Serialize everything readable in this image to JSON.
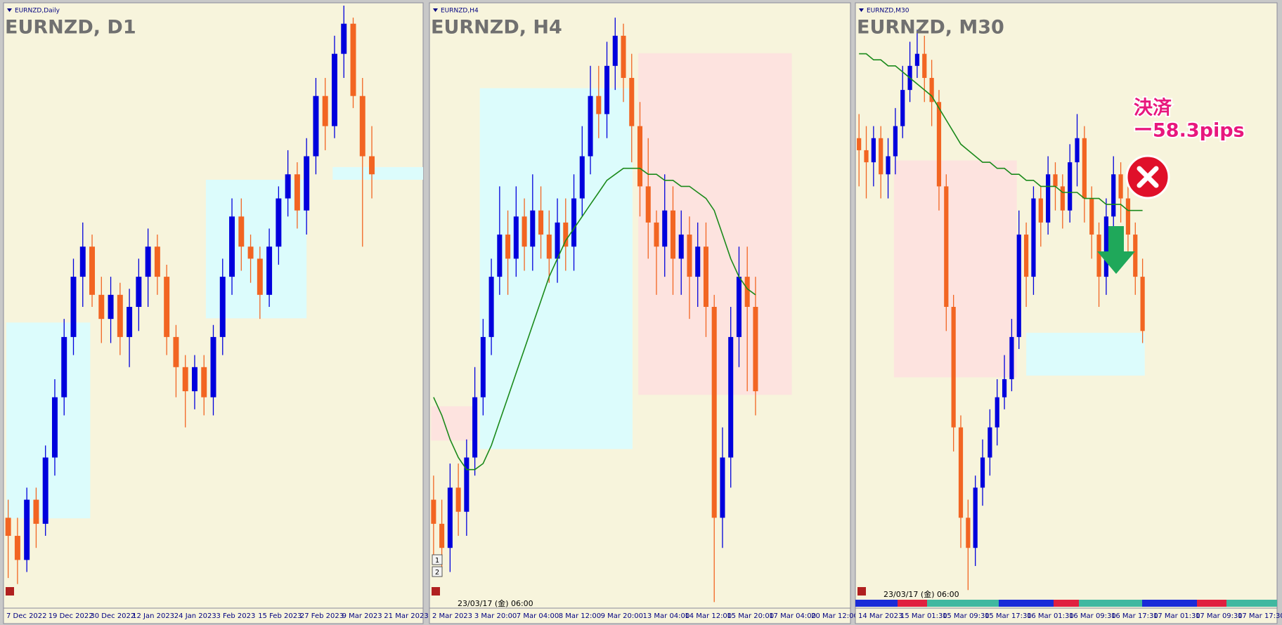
{
  "chart_data": [
    {
      "type": "candlestick",
      "label": "EURNZD,Daily",
      "title": "EURNZD, D1",
      "ylim": [
        0,
        100
      ],
      "up_color": "#0000dd",
      "down_color": "#f26522",
      "ma_color": "#1b8a1b",
      "open": [
        15,
        12,
        8,
        18,
        14,
        25,
        35,
        45,
        55,
        60,
        52,
        48,
        52,
        45,
        50,
        55,
        60,
        55,
        45,
        40,
        36,
        40,
        35,
        45,
        55,
        65,
        60,
        58,
        52,
        60,
        68,
        72,
        66,
        75,
        85,
        80,
        92,
        97,
        85,
        75,
        null,
        null,
        null,
        null,
        null
      ],
      "high": [
        18,
        15,
        20,
        20,
        27,
        38,
        48,
        58,
        64,
        62,
        55,
        55,
        54,
        53,
        58,
        63,
        62,
        57,
        47,
        42,
        42,
        42,
        47,
        58,
        68,
        68,
        62,
        60,
        63,
        70,
        76,
        74,
        78,
        88,
        88,
        95,
        100,
        98,
        88,
        80,
        null,
        null,
        null,
        null,
        null
      ],
      "low": [
        5,
        4,
        6,
        10,
        12,
        22,
        32,
        42,
        50,
        50,
        44,
        44,
        42,
        40,
        46,
        50,
        52,
        42,
        35,
        30,
        33,
        32,
        32,
        42,
        52,
        56,
        54,
        48,
        50,
        57,
        65,
        63,
        62,
        72,
        76,
        78,
        88,
        83,
        60,
        68,
        null,
        null,
        null,
        null,
        null
      ],
      "close": [
        12,
        8,
        18,
        14,
        25,
        35,
        45,
        55,
        60,
        52,
        48,
        52,
        45,
        50,
        55,
        60,
        55,
        45,
        40,
        36,
        40,
        35,
        45,
        55,
        65,
        60,
        58,
        52,
        60,
        68,
        72,
        66,
        75,
        85,
        80,
        92,
        97,
        85,
        75,
        72,
        null,
        null,
        null,
        null,
        null
      ],
      "zones": [
        {
          "x": [
            0.3,
            9.3
          ],
          "y": [
            14.9,
            47.4
          ],
          "color": "#dcfcfc"
        },
        {
          "x": [
            21.7,
            32.5
          ],
          "y": [
            48.1,
            71.1
          ],
          "color": "#dcfcfc"
        },
        {
          "x": [
            35.3,
            45
          ],
          "y": [
            71.1,
            73.2
          ],
          "color": "#dcfcfc"
        }
      ],
      "x_labels": [
        "7 Dec 2022",
        "19 Dec 2022",
        "30 Dec 2022",
        "12 Jan 2023",
        "24 Jan 2023",
        "3 Feb 2023",
        "15 Feb 2023",
        "27 Feb 2023",
        "9 Mar 2023",
        "21 Mar 2023"
      ]
    },
    {
      "type": "candlestick",
      "label": "EURNZD,H4",
      "title": "EURNZD, H4",
      "ylim": [
        0,
        100
      ],
      "up_color": "#0000dd",
      "down_color": "#f26522",
      "ma_color": "#1b8a1b",
      "open": [
        18,
        14,
        10,
        20,
        16,
        25,
        35,
        45,
        55,
        62,
        58,
        65,
        60,
        66,
        62,
        58,
        64,
        60,
        68,
        75,
        85,
        82,
        90,
        95,
        88,
        80,
        70,
        64,
        60,
        66,
        58,
        62,
        55,
        60,
        50,
        15,
        25,
        45,
        55,
        50,
        null,
        null,
        null,
        null,
        null,
        null,
        null,
        null,
        null,
        null,
        null
      ],
      "high": [
        22,
        18,
        24,
        24,
        28,
        40,
        48,
        58,
        70,
        66,
        70,
        68,
        72,
        70,
        66,
        68,
        68,
        72,
        80,
        90,
        90,
        94,
        98,
        97,
        92,
        84,
        78,
        66,
        72,
        70,
        66,
        65,
        64,
        64,
        52,
        30,
        50,
        60,
        60,
        55,
        null,
        null,
        null,
        null,
        null,
        null,
        null,
        null,
        null,
        null,
        null
      ],
      "low": [
        8,
        6,
        6,
        12,
        12,
        22,
        32,
        42,
        52,
        52,
        55,
        56,
        56,
        58,
        54,
        54,
        56,
        56,
        65,
        72,
        78,
        78,
        86,
        84,
        74,
        65,
        58,
        52,
        55,
        52,
        52,
        48,
        50,
        45,
        1,
        10,
        20,
        40,
        36,
        32,
        null,
        null,
        null,
        null,
        null,
        null,
        null,
        null,
        null,
        null,
        null
      ],
      "close": [
        14,
        10,
        20,
        16,
        25,
        35,
        45,
        55,
        62,
        58,
        65,
        60,
        66,
        62,
        58,
        64,
        60,
        68,
        75,
        85,
        82,
        90,
        95,
        88,
        80,
        70,
        64,
        60,
        66,
        58,
        62,
        55,
        60,
        50,
        15,
        25,
        45,
        55,
        50,
        36,
        null,
        null,
        null,
        null,
        null,
        null,
        null,
        null,
        null,
        null,
        null
      ],
      "ma": [
        35,
        32,
        28,
        25,
        23,
        23,
        24,
        27,
        31,
        35,
        39,
        43,
        47,
        51,
        55,
        58,
        61,
        63,
        65,
        67,
        69,
        71,
        72,
        73,
        73,
        73,
        72,
        72,
        71,
        71,
        70,
        70,
        69,
        68,
        66,
        62,
        58,
        55,
        53,
        52,
        null,
        null,
        null,
        null,
        null,
        null,
        null,
        null,
        null,
        null,
        null
      ],
      "zones": [
        {
          "x": [
            6.1,
            24.6
          ],
          "y": [
            26.4,
            86.3
          ],
          "color": "#dcfcfc"
        },
        {
          "x": [
            25.3,
            43.9
          ],
          "y": [
            35.4,
            92.1
          ],
          "color": "#fde3df"
        },
        {
          "x": [
            0.2,
            5.4
          ],
          "y": [
            27.8,
            33.5
          ],
          "color": "#fde3df"
        }
      ],
      "x_labels": [
        "2 Mar 2023",
        "3 Mar 20:00",
        "7 Mar 04:00",
        "8 Mar 12:00",
        "9 Mar 20:00",
        "13 Mar 04:00",
        "14 Mar 12:00",
        "15 Mar 20:00",
        "17 Mar 04:00",
        "20 Mar 12:00"
      ],
      "timestamp": "23/03/17 (金) 06:00",
      "buttons": [
        "1",
        "2"
      ]
    },
    {
      "type": "candlestick",
      "label": "EURNZD,M30",
      "title": "EURNZD, M30",
      "ylim": [
        0,
        100
      ],
      "up_color": "#0000dd",
      "down_color": "#f26522",
      "ma_color": "#1b8a1b",
      "open": [
        78,
        76,
        74,
        78,
        72,
        75,
        80,
        86,
        90,
        92,
        88,
        84,
        70,
        50,
        30,
        15,
        10,
        20,
        25,
        30,
        35,
        38,
        45,
        62,
        55,
        68,
        64,
        72,
        70,
        66,
        74,
        78,
        68,
        62,
        55,
        65,
        72,
        68,
        62,
        55,
        null,
        null,
        null,
        null,
        null,
        null,
        null,
        null,
        null,
        null,
        null,
        null,
        null,
        null,
        null,
        null,
        null,
        null
      ],
      "high": [
        82,
        80,
        80,
        80,
        78,
        83,
        90,
        94,
        96,
        95,
        91,
        86,
        72,
        52,
        32,
        18,
        22,
        28,
        33,
        38,
        42,
        48,
        66,
        64,
        70,
        70,
        75,
        74,
        72,
        77,
        82,
        80,
        70,
        64,
        68,
        75,
        74,
        70,
        64,
        58,
        null,
        null,
        null,
        null,
        null,
        null,
        null,
        null,
        null,
        null,
        null,
        null,
        null,
        null,
        null,
        null,
        null,
        null
      ],
      "low": [
        70,
        68,
        70,
        68,
        68,
        72,
        78,
        84,
        88,
        84,
        80,
        66,
        46,
        26,
        10,
        3,
        7,
        17,
        22,
        27,
        33,
        36,
        43,
        50,
        52,
        60,
        62,
        66,
        63,
        64,
        70,
        64,
        58,
        50,
        52,
        62,
        64,
        58,
        52,
        44,
        null,
        null,
        null,
        null,
        null,
        null,
        null,
        null,
        null,
        null,
        null,
        null,
        null,
        null,
        null,
        null,
        null,
        null
      ],
      "close": [
        76,
        74,
        78,
        72,
        75,
        80,
        86,
        90,
        92,
        88,
        84,
        70,
        50,
        30,
        15,
        10,
        20,
        25,
        30,
        35,
        38,
        45,
        62,
        55,
        68,
        64,
        72,
        70,
        66,
        74,
        78,
        68,
        62,
        55,
        65,
        72,
        68,
        62,
        55,
        46,
        null,
        null,
        null,
        null,
        null,
        null,
        null,
        null,
        null,
        null,
        null,
        null,
        null,
        null,
        null,
        null,
        null,
        null
      ],
      "ma": [
        92,
        92,
        91,
        91,
        90,
        90,
        89,
        88,
        87,
        86,
        85,
        83,
        81,
        79,
        77,
        76,
        75,
        74,
        74,
        73,
        73,
        72,
        72,
        71,
        71,
        70,
        70,
        70,
        69,
        69,
        69,
        68,
        68,
        68,
        67,
        67,
        67,
        66,
        66,
        66,
        null,
        null,
        null,
        null,
        null,
        null,
        null,
        null,
        null,
        null,
        null,
        null,
        null,
        null,
        null,
        null,
        null,
        null
      ],
      "zones": [
        {
          "x": [
            5.3,
            22.2
          ],
          "y": [
            38.3,
            74.3
          ],
          "color": "#fde3df"
        },
        {
          "x": [
            23.5,
            39.8
          ],
          "y": [
            38.6,
            45.7
          ],
          "color": "#dcfcfc"
        }
      ],
      "x_labels": [
        "14 Mar 2023",
        "15 Mar 01:30",
        "15 Mar 09:30",
        "15 Mar 17:30",
        "16 Mar 01:30",
        "16 Mar 09:30",
        "16 Mar 17:30",
        "17 Mar 01:30",
        "17 Mar 09:30",
        "17 Mar 17:30"
      ],
      "timestamp": "23/03/17 (金) 06:00",
      "annotations": [
        "決済",
        "ー58.3pips"
      ]
    }
  ]
}
